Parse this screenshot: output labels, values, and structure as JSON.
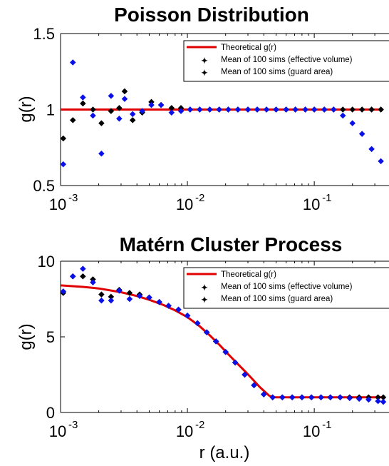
{
  "chart_data": [
    {
      "type": "line",
      "title": "Poisson Distribution",
      "xlabel": "",
      "ylabel": "g(r)",
      "xscale": "log",
      "xlim": [
        0.001,
        0.35
      ],
      "ylim": [
        0.5,
        1.5
      ],
      "yticks": [
        0.5,
        1,
        1.5
      ],
      "ytick_labels": [
        "0.5",
        "1",
        "1.5"
      ],
      "xticks": [
        0.001,
        0.01,
        0.1
      ],
      "xtick_labels": [
        {
          "base": "10",
          "exp": "-3"
        },
        {
          "base": "10",
          "exp": "-2"
        },
        {
          "base": "10",
          "exp": "-1"
        }
      ],
      "grid": false,
      "legend_position": "top-right",
      "colors": {
        "theory": "#e00000",
        "effective": "#000000",
        "guard": "#0a10e8"
      },
      "series": [
        {
          "name": "Theoretical g(r)",
          "kind": "line",
          "color": "#e00000",
          "x": [
            0.001,
            0.35
          ],
          "y": [
            1.0,
            1.0
          ]
        },
        {
          "name": "Mean of 100 sims (effective volume)",
          "kind": "markers",
          "color": "#000000",
          "x": [
            0.00105,
            0.00125,
            0.0015,
            0.0018,
            0.0021,
            0.0025,
            0.0029,
            0.0032,
            0.0037,
            0.0044,
            0.0052,
            0.0062,
            0.0075,
            0.0089,
            0.0105,
            0.0125,
            0.015,
            0.0178,
            0.021,
            0.025,
            0.03,
            0.0355,
            0.042,
            0.05,
            0.06,
            0.071,
            0.085,
            0.1,
            0.12,
            0.142,
            0.168,
            0.2,
            0.238,
            0.283,
            0.335
          ],
          "y": [
            0.81,
            0.93,
            1.04,
            1.0,
            0.91,
            0.99,
            1.01,
            1.12,
            0.93,
            0.98,
            1.05,
            1.03,
            1.01,
            1.01,
            1.0,
            1.0,
            1.0,
            1.0,
            1.0,
            1.0,
            1.0,
            1.0,
            1.0,
            1.0,
            1.0,
            1.0,
            1.0,
            1.0,
            1.0,
            1.0,
            1.0,
            1.0,
            1.0,
            1.0,
            1.0
          ]
        },
        {
          "name": "Mean of 100 sims (guard area)",
          "kind": "markers",
          "color": "#0a10e8",
          "x": [
            0.00105,
            0.00125,
            0.0015,
            0.0018,
            0.0021,
            0.0025,
            0.0029,
            0.0032,
            0.0037,
            0.0044,
            0.0052,
            0.0062,
            0.0075,
            0.0089,
            0.0105,
            0.0125,
            0.015,
            0.0178,
            0.021,
            0.025,
            0.03,
            0.0355,
            0.042,
            0.05,
            0.06,
            0.071,
            0.085,
            0.1,
            0.12,
            0.142,
            0.168,
            0.2,
            0.238,
            0.283,
            0.335
          ],
          "y": [
            0.64,
            1.31,
            1.08,
            0.96,
            0.71,
            1.09,
            0.94,
            1.07,
            0.97,
            0.99,
            1.03,
            1.03,
            0.98,
            0.99,
            1.0,
            1.0,
            1.0,
            1.0,
            1.0,
            1.0,
            1.0,
            1.0,
            1.0,
            1.0,
            1.0,
            1.0,
            1.0,
            1.0,
            1.0,
            1.0,
            0.96,
            0.91,
            0.84,
            0.74,
            0.66
          ]
        }
      ]
    },
    {
      "type": "line",
      "title": "Matérn Cluster Process",
      "xlabel": "r (a.u.)",
      "ylabel": "g(r)",
      "xscale": "log",
      "xlim": [
        0.001,
        0.35
      ],
      "ylim": [
        0,
        10
      ],
      "yticks": [
        0,
        5,
        10
      ],
      "ytick_labels": [
        "0",
        "5",
        "10"
      ],
      "xticks": [
        0.001,
        0.01,
        0.1
      ],
      "xtick_labels": [
        {
          "base": "10",
          "exp": "-3"
        },
        {
          "base": "10",
          "exp": "-2"
        },
        {
          "base": "10",
          "exp": "-1"
        }
      ],
      "grid": false,
      "legend_position": "top-right",
      "colors": {
        "theory": "#e00000",
        "effective": "#000000",
        "guard": "#0a10e8"
      },
      "series": [
        {
          "name": "Theoretical g(r)",
          "kind": "line",
          "color": "#e00000",
          "x": [
            0.001,
            0.0015,
            0.002,
            0.003,
            0.004,
            0.005,
            0.0065,
            0.008,
            0.01,
            0.0125,
            0.015,
            0.018,
            0.021,
            0.025,
            0.029,
            0.033,
            0.037,
            0.041,
            0.044,
            0.046,
            0.048,
            0.05,
            0.06,
            0.1,
            0.2,
            0.35
          ],
          "y": [
            8.4,
            8.3,
            8.2,
            7.95,
            7.7,
            7.45,
            7.1,
            6.75,
            6.3,
            5.7,
            5.1,
            4.45,
            3.85,
            3.2,
            2.65,
            2.15,
            1.7,
            1.35,
            1.12,
            1.04,
            1.01,
            1.0,
            1.0,
            1.0,
            1.0,
            1.0
          ]
        },
        {
          "name": "Mean of 100 sims (effective volume)",
          "kind": "markers",
          "color": "#000000",
          "x": [
            0.00105,
            0.00125,
            0.0015,
            0.0018,
            0.0021,
            0.0025,
            0.0029,
            0.0035,
            0.0042,
            0.005,
            0.006,
            0.0071,
            0.0085,
            0.01,
            0.012,
            0.0142,
            0.0168,
            0.02,
            0.0238,
            0.0283,
            0.0335,
            0.04,
            0.047,
            0.056,
            0.067,
            0.08,
            0.095,
            0.113,
            0.134,
            0.16,
            0.19,
            0.226,
            0.268,
            0.318,
            0.35
          ],
          "y": [
            7.9,
            9.0,
            9.0,
            8.8,
            7.8,
            7.65,
            8.1,
            7.9,
            7.8,
            7.6,
            7.3,
            7.05,
            6.8,
            6.4,
            5.9,
            5.3,
            4.7,
            4.0,
            3.3,
            2.5,
            1.8,
            1.2,
            1.0,
            1.0,
            1.0,
            1.0,
            1.0,
            1.0,
            1.0,
            1.0,
            1.0,
            1.0,
            1.0,
            1.0,
            1.0
          ]
        },
        {
          "name": "Mean of 100 sims (guard area)",
          "kind": "markers",
          "color": "#0a10e8",
          "x": [
            0.00105,
            0.00125,
            0.0015,
            0.0018,
            0.0021,
            0.0025,
            0.0029,
            0.0035,
            0.0042,
            0.005,
            0.006,
            0.0071,
            0.0085,
            0.01,
            0.012,
            0.0142,
            0.0168,
            0.02,
            0.0238,
            0.0283,
            0.0335,
            0.04,
            0.047,
            0.056,
            0.067,
            0.08,
            0.095,
            0.113,
            0.134,
            0.16,
            0.19,
            0.226,
            0.268,
            0.318,
            0.35
          ],
          "y": [
            8.0,
            9.0,
            9.5,
            8.6,
            7.4,
            7.4,
            8.05,
            7.5,
            7.7,
            7.6,
            7.3,
            7.05,
            6.8,
            6.4,
            5.9,
            5.3,
            4.7,
            4.0,
            3.3,
            2.5,
            1.8,
            1.2,
            1.0,
            1.0,
            1.0,
            1.0,
            1.0,
            1.0,
            1.0,
            1.0,
            0.95,
            0.9,
            0.85,
            0.75,
            0.7
          ]
        }
      ]
    }
  ]
}
